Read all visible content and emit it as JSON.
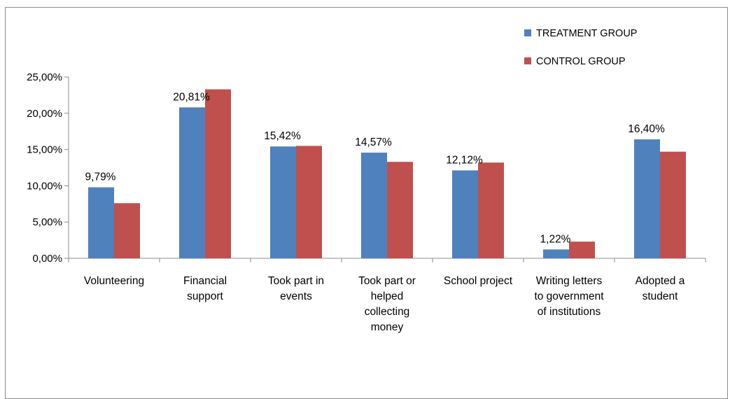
{
  "chart_data": {
    "type": "bar",
    "title": "",
    "xlabel": "",
    "ylabel": "",
    "categories": [
      [
        "Volunteering"
      ],
      [
        "Financial",
        "support"
      ],
      [
        "Took part in",
        "events"
      ],
      [
        "Took part or",
        "helped",
        "collecting",
        "money"
      ],
      [
        "School project"
      ],
      [
        "Writing letters",
        "to government",
        "of institutions"
      ],
      [
        "Adopted a",
        "student"
      ]
    ],
    "series": [
      {
        "name": "TREATMENT GROUP",
        "color": "#4f81bd",
        "values": [
          9.79,
          20.81,
          15.42,
          14.57,
          12.12,
          1.22,
          16.4
        ],
        "data_labels": [
          "9,79%",
          "20,81%",
          "15,42%",
          "14,57%",
          "12,12%",
          "1,22%",
          "16,40%"
        ]
      },
      {
        "name": "CONTROL GROUP",
        "color": "#c0504d",
        "values": [
          7.6,
          23.3,
          15.5,
          13.3,
          13.2,
          2.3,
          14.7
        ]
      }
    ],
    "ylim": [
      0,
      25
    ],
    "yticks": [
      0,
      5,
      10,
      15,
      20,
      25
    ],
    "ytick_labels": [
      "0,00%",
      "5,00%",
      "10,00%",
      "15,00%",
      "20,00%",
      "25,00%"
    ],
    "grid": false,
    "legend_position": "top-right"
  }
}
